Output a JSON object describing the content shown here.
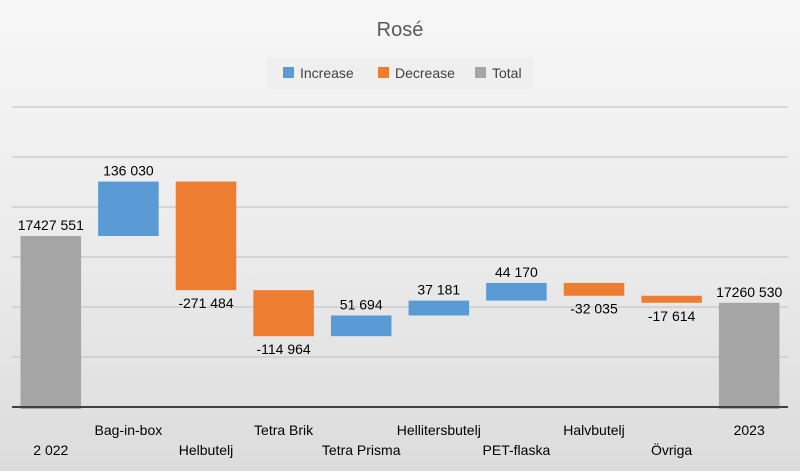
{
  "chart_data": {
    "type": "waterfall",
    "title": "Rosé",
    "legend": {
      "placement": "top",
      "items": [
        {
          "label": "Increase",
          "color": "#5b9bd5"
        },
        {
          "label": "Decrease",
          "color": "#ed7d31"
        },
        {
          "label": "Total",
          "color": "#a5a5a5"
        }
      ]
    },
    "grid": true,
    "y_axis_labels": false,
    "ylim": [
      17000000,
      17750000
    ],
    "bars": [
      {
        "category": "2 022",
        "kind": "total",
        "value": 17427551,
        "label": "17427 551"
      },
      {
        "category": "Bag-in-box",
        "kind": "increase",
        "value": 136030,
        "label": "136 030"
      },
      {
        "category": "Helbutelj",
        "kind": "decrease",
        "value": -271484,
        "label": "-271 484"
      },
      {
        "category": "Tetra Brik",
        "kind": "decrease",
        "value": -114964,
        "label": "-114 964"
      },
      {
        "category": "Tetra Prisma",
        "kind": "increase",
        "value": 51694,
        "label": "51 694"
      },
      {
        "category": "Hellitersbutelj",
        "kind": "increase",
        "value": 37181,
        "label": "37 181"
      },
      {
        "category": "PET-flaska",
        "kind": "increase",
        "value": 44170,
        "label": "44 170"
      },
      {
        "category": "Halvbutelj",
        "kind": "decrease",
        "value": -32035,
        "label": "-32 035"
      },
      {
        "category": "Övriga",
        "kind": "decrease",
        "value": -17614,
        "label": "-17 614"
      },
      {
        "category": "2023",
        "kind": "total",
        "value": 17260530,
        "label": "17260 530"
      }
    ]
  }
}
